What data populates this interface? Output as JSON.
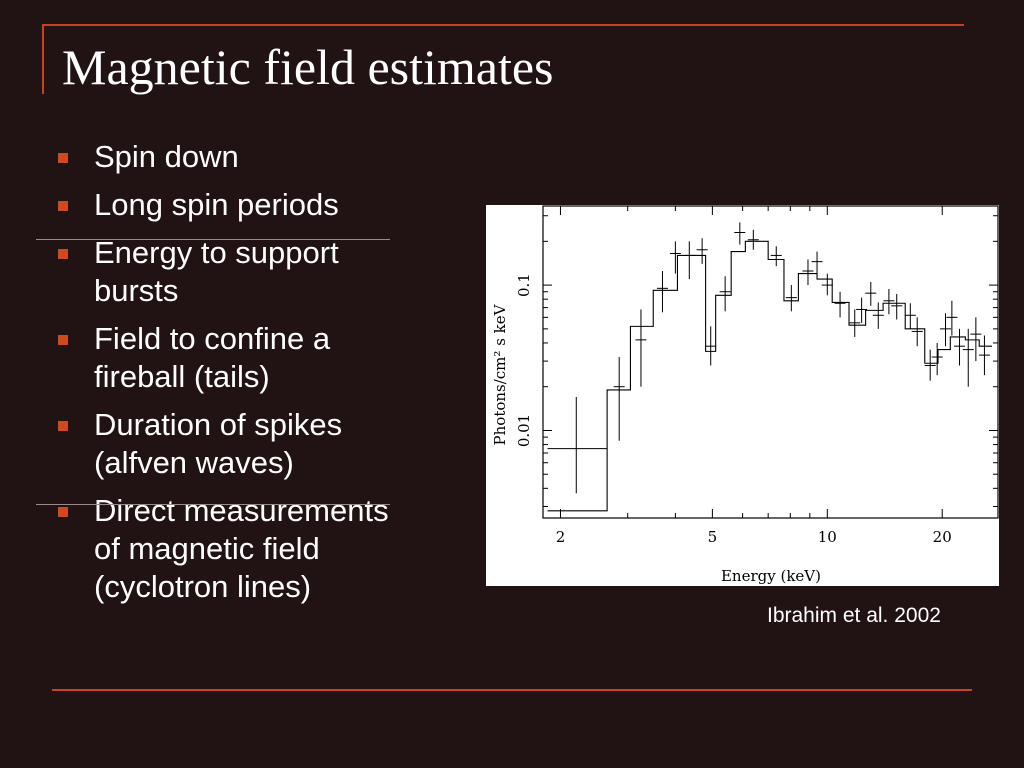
{
  "slide": {
    "title": "Magnetic field estimates",
    "citation": "Ibrahim et al. 2002",
    "bullets": [
      {
        "line1": "Spin down",
        "line2": ""
      },
      {
        "line1": "Long spin periods",
        "line2": ""
      },
      {
        "line1": "Energy to support",
        "line2": "bursts"
      },
      {
        "line1": "Field to confine a",
        "line2": "fireball (tails)"
      },
      {
        "line1": "Duration of spikes",
        "line2": "(alfven waves)"
      },
      {
        "line1": "Direct measurements",
        "line2": "of magnetic field",
        "line3": "(cyclotron lines)"
      }
    ]
  },
  "chart_data": {
    "type": "line",
    "xlabel": "Energy (keV)",
    "ylabel": "Photons/cm² s keV",
    "xscale": "log",
    "yscale": "log",
    "xlim": [
      1.8,
      28
    ],
    "ylim": [
      0.0025,
      0.35
    ],
    "x_ticks": [
      "2",
      "5",
      "10",
      "20"
    ],
    "y_ticks": [
      "0.01",
      "0.1"
    ],
    "series": [
      {
        "style": "step model",
        "bins": [
          {
            "x0": 1.85,
            "x1": 2.65,
            "y": 0.0028
          },
          {
            "x0": 2.65,
            "x1": 3.05,
            "y": 0.019
          },
          {
            "x0": 3.05,
            "x1": 3.5,
            "y": 0.052
          },
          {
            "x0": 3.5,
            "x1": 4.05,
            "y": 0.092
          },
          {
            "x0": 4.05,
            "x1": 4.8,
            "y": 0.16
          },
          {
            "x0": 4.8,
            "x1": 5.1,
            "y": 0.035
          },
          {
            "x0": 5.1,
            "x1": 5.6,
            "y": 0.085
          },
          {
            "x0": 5.6,
            "x1": 6.1,
            "y": 0.17
          },
          {
            "x0": 6.1,
            "x1": 7.0,
            "y": 0.2
          },
          {
            "x0": 7.0,
            "x1": 7.7,
            "y": 0.15
          },
          {
            "x0": 7.7,
            "x1": 8.4,
            "y": 0.078
          },
          {
            "x0": 8.4,
            "x1": 9.4,
            "y": 0.12
          },
          {
            "x0": 9.4,
            "x1": 10.3,
            "y": 0.11
          },
          {
            "x0": 10.3,
            "x1": 11.4,
            "y": 0.076
          },
          {
            "x0": 11.4,
            "x1": 12.6,
            "y": 0.053
          },
          {
            "x0": 12.6,
            "x1": 14.0,
            "y": 0.067
          },
          {
            "x0": 14.0,
            "x1": 16.0,
            "y": 0.075
          },
          {
            "x0": 16.0,
            "x1": 18.0,
            "y": 0.05
          },
          {
            "x0": 18.0,
            "x1": 19.5,
            "y": 0.029
          },
          {
            "x0": 19.5,
            "x1": 21.0,
            "y": 0.036
          },
          {
            "x0": 21.0,
            "x1": 23.0,
            "y": 0.044
          },
          {
            "x0": 23.0,
            "x1": 25.0,
            "y": 0.042
          },
          {
            "x0": 25.0,
            "x1": 27.0,
            "y": 0.038
          }
        ]
      },
      {
        "style": "data with error bars",
        "points": [
          {
            "x": 2.2,
            "y": 0.0075,
            "xerr": [
              1.85,
              2.65
            ],
            "yerr": [
              0.0037,
              0.017
            ]
          },
          {
            "x": 2.85,
            "y": 0.02,
            "yerr": [
              0.0085,
              0.032
            ]
          },
          {
            "x": 3.25,
            "y": 0.042,
            "yerr": [
              0.02,
              0.068
            ]
          },
          {
            "x": 3.7,
            "y": 0.095,
            "yerr": [
              0.065,
              0.125
            ]
          },
          {
            "x": 4.0,
            "y": 0.165,
            "yerr": [
              0.12,
              0.2
            ]
          },
          {
            "x": 4.35,
            "y": 0.16,
            "yerr": [
              0.11,
              0.2
            ]
          },
          {
            "x": 4.7,
            "y": 0.175,
            "yerr": [
              0.14,
              0.21
            ]
          },
          {
            "x": 4.95,
            "y": 0.038,
            "yerr": [
              0.028,
              0.052
            ]
          },
          {
            "x": 5.4,
            "y": 0.09,
            "yerr": [
              0.066,
              0.115
            ]
          },
          {
            "x": 5.9,
            "y": 0.23,
            "yerr": [
              0.19,
              0.27
            ]
          },
          {
            "x": 6.4,
            "y": 0.205,
            "yerr": [
              0.175,
              0.24
            ]
          },
          {
            "x": 7.35,
            "y": 0.16,
            "yerr": [
              0.135,
              0.185
            ]
          },
          {
            "x": 8.05,
            "y": 0.082,
            "yerr": [
              0.066,
              0.1
            ]
          },
          {
            "x": 8.9,
            "y": 0.125,
            "yerr": [
              0.1,
              0.15
            ]
          },
          {
            "x": 9.4,
            "y": 0.145,
            "yerr": [
              0.12,
              0.17
            ]
          },
          {
            "x": 10.0,
            "y": 0.1,
            "yerr": [
              0.085,
              0.12
            ]
          },
          {
            "x": 10.8,
            "y": 0.075,
            "yerr": [
              0.06,
              0.09
            ]
          },
          {
            "x": 11.8,
            "y": 0.055,
            "yerr": [
              0.044,
              0.068
            ]
          },
          {
            "x": 12.3,
            "y": 0.068,
            "yerr": [
              0.055,
              0.082
            ]
          },
          {
            "x": 13.0,
            "y": 0.088,
            "yerr": [
              0.072,
              0.105
            ]
          },
          {
            "x": 13.6,
            "y": 0.062,
            "yerr": [
              0.05,
              0.076
            ]
          },
          {
            "x": 14.5,
            "y": 0.078,
            "yerr": [
              0.063,
              0.094
            ]
          },
          {
            "x": 15.2,
            "y": 0.072,
            "yerr": [
              0.058,
              0.087
            ]
          },
          {
            "x": 16.5,
            "y": 0.062,
            "yerr": [
              0.05,
              0.075
            ]
          },
          {
            "x": 17.2,
            "y": 0.048,
            "yerr": [
              0.038,
              0.06
            ]
          },
          {
            "x": 18.6,
            "y": 0.028,
            "yerr": [
              0.022,
              0.036
            ]
          },
          {
            "x": 19.4,
            "y": 0.032,
            "yerr": [
              0.024,
              0.04
            ]
          },
          {
            "x": 20.4,
            "y": 0.05,
            "yerr": [
              0.038,
              0.064
            ]
          },
          {
            "x": 21.2,
            "y": 0.06,
            "yerr": [
              0.045,
              0.078
            ]
          },
          {
            "x": 22.2,
            "y": 0.038,
            "yerr": [
              0.028,
              0.05
            ]
          },
          {
            "x": 23.4,
            "y": 0.036,
            "yerr": [
              0.02,
              0.05
            ]
          },
          {
            "x": 24.5,
            "y": 0.046,
            "yerr": [
              0.03,
              0.06
            ]
          },
          {
            "x": 25.8,
            "y": 0.033,
            "yerr": [
              0.024,
              0.045
            ]
          }
        ]
      }
    ],
    "grid": false
  }
}
